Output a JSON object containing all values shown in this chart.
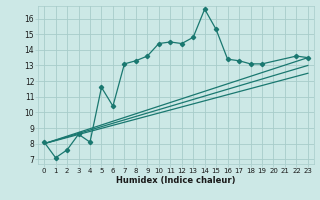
{
  "bg_color": "#cce8e6",
  "grid_color": "#a8ccca",
  "line_color": "#1a7870",
  "xlabel": "Humidex (Indice chaleur)",
  "xlim": [
    -0.5,
    23.5
  ],
  "ylim": [
    6.7,
    16.8
  ],
  "yticks": [
    7,
    8,
    9,
    10,
    11,
    12,
    13,
    14,
    15,
    16
  ],
  "xticks": [
    0,
    1,
    2,
    3,
    4,
    5,
    6,
    7,
    8,
    9,
    10,
    11,
    12,
    13,
    14,
    15,
    16,
    17,
    18,
    19,
    20,
    21,
    22,
    23
  ],
  "main_line_x": [
    0,
    1,
    2,
    3,
    4,
    5,
    6,
    7,
    8,
    9,
    10,
    11,
    12,
    13,
    14,
    15,
    16,
    17,
    18,
    19,
    22,
    23
  ],
  "main_line_y": [
    8.1,
    7.1,
    7.6,
    8.6,
    8.1,
    11.6,
    10.4,
    13.1,
    13.3,
    13.6,
    14.4,
    14.5,
    14.4,
    14.8,
    16.6,
    15.3,
    13.4,
    13.3,
    13.1,
    13.1,
    13.6,
    13.5
  ],
  "line2_x": [
    0,
    23
  ],
  "line2_y": [
    8.0,
    13.5
  ],
  "line3_x": [
    0,
    23
  ],
  "line3_y": [
    8.0,
    13.0
  ],
  "line4_x": [
    0,
    23
  ],
  "line4_y": [
    8.0,
    12.5
  ],
  "marker": "D",
  "markersize": 2.2,
  "linewidth": 0.9,
  "tick_fontsize": 5.0,
  "xlabel_fontsize": 6.0
}
